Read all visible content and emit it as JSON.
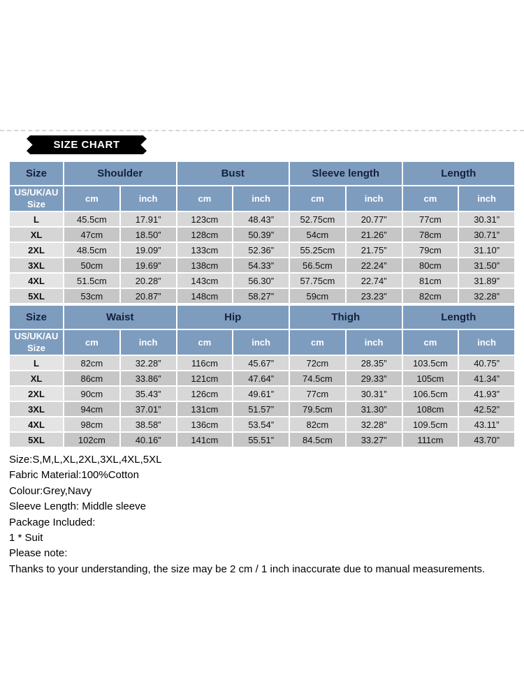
{
  "banner": {
    "label": "SIZE CHART"
  },
  "tables": [
    {
      "size_header": "Size",
      "size_subheader": "US/UK/AU\nSize",
      "columns": [
        "Shoulder",
        "Bust",
        "Sleeve length",
        "Length"
      ],
      "unit_cm": "cm",
      "unit_inch": "inch",
      "rows": [
        {
          "size": "L",
          "values": [
            "45.5cm",
            "17.91”",
            "123cm",
            "48.43”",
            "52.75cm",
            "20.77”",
            "77cm",
            "30.31”"
          ]
        },
        {
          "size": "XL",
          "values": [
            "47cm",
            "18.50”",
            "128cm",
            "50.39”",
            "54cm",
            "21.26”",
            "78cm",
            "30.71”"
          ]
        },
        {
          "size": "2XL",
          "values": [
            "48.5cm",
            "19.09”",
            "133cm",
            "52.36”",
            "55.25cm",
            "21.75”",
            "79cm",
            "31.10”"
          ]
        },
        {
          "size": "3XL",
          "values": [
            "50cm",
            "19.69”",
            "138cm",
            "54.33”",
            "56.5cm",
            "22.24”",
            "80cm",
            "31.50”"
          ]
        },
        {
          "size": "4XL",
          "values": [
            "51.5cm",
            "20.28”",
            "143cm",
            "56.30”",
            "57.75cm",
            "22.74”",
            "81cm",
            "31.89”"
          ]
        },
        {
          "size": "5XL",
          "values": [
            "53cm",
            "20.87”",
            "148cm",
            "58.27”",
            "59cm",
            "23.23”",
            "82cm",
            "32.28”"
          ]
        }
      ]
    },
    {
      "size_header": "Size",
      "size_subheader": "US/UK/AU\nSize",
      "columns": [
        "Waist",
        "Hip",
        "Thigh",
        "Length"
      ],
      "unit_cm": "cm",
      "unit_inch": "inch",
      "rows": [
        {
          "size": "L",
          "values": [
            "82cm",
            "32.28”",
            "116cm",
            "45.67”",
            "72cm",
            "28.35”",
            "103.5cm",
            "40.75”"
          ]
        },
        {
          "size": "XL",
          "values": [
            "86cm",
            "33.86”",
            "121cm",
            "47.64”",
            "74.5cm",
            "29.33”",
            "105cm",
            "41.34”"
          ]
        },
        {
          "size": "2XL",
          "values": [
            "90cm",
            "35.43”",
            "126cm",
            "49.61”",
            "77cm",
            "30.31”",
            "106.5cm",
            "41.93”"
          ]
        },
        {
          "size": "3XL",
          "values": [
            "94cm",
            "37.01”",
            "131cm",
            "51.57”",
            "79.5cm",
            "31.30”",
            "108cm",
            "42.52”"
          ]
        },
        {
          "size": "4XL",
          "values": [
            "98cm",
            "38.58”",
            "136cm",
            "53.54”",
            "82cm",
            "32.28”",
            "109.5cm",
            "43.11”"
          ]
        },
        {
          "size": "5XL",
          "values": [
            "102cm",
            "40.16”",
            "141cm",
            "55.51”",
            "84.5cm",
            "33.27”",
            "111cm",
            "43.70”"
          ]
        }
      ]
    }
  ],
  "notes": [
    "Size:S,M,L,XL,2XL,3XL,4XL,5XL",
    "Fabric Material:100%Cotton",
    "Colour:Grey,Navy",
    "Sleeve Length: Middle sleeve",
    "Package Included:",
    "1 * Suit",
    "Please note:",
    "Thanks to your understanding, the size may be 2 cm / 1 inch inaccurate due to manual measurements."
  ],
  "colors": {
    "header_blue": "#7e9cbe",
    "row_light": "#d7d7d7",
    "row_dark": "#c6c6c6",
    "banner_black": "#000000"
  }
}
